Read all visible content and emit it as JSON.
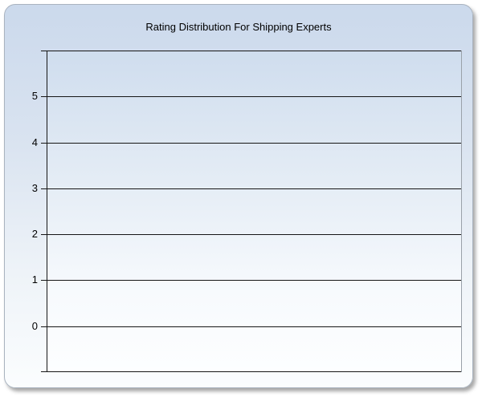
{
  "panel": {
    "title": "Rating Distribution For Shipping Experts"
  },
  "y_axis": {
    "tick_labels": [
      "",
      "5",
      "4",
      "3",
      "2",
      "1",
      "0",
      ""
    ]
  },
  "colors": {
    "panel_gradient_top": "#cbd9ec",
    "panel_gradient_bottom": "#fbfdfe",
    "panel_border": "#a9b3bf",
    "plot_gradient_top": "#cfddee",
    "plot_gradient_bottom": "#fdfeff",
    "gridline": "#161616",
    "axis_line": "#161616",
    "plot_right_border": "#9aa1a9",
    "title_text": "#000000",
    "tick_label_text": "#000000",
    "page_background": "#ffffff"
  },
  "chart_data": {
    "type": "bar",
    "title": "Rating Distribution For Shipping Experts",
    "categories": [],
    "series": [],
    "xlabel": "",
    "ylabel": "",
    "ylim": [
      -1,
      6
    ],
    "y_ticks": [
      0,
      1,
      2,
      3,
      4,
      5
    ],
    "grid": "horizontal gridlines on, at every integer from -1 to 6",
    "legend": "none",
    "plot_empty": true
  }
}
